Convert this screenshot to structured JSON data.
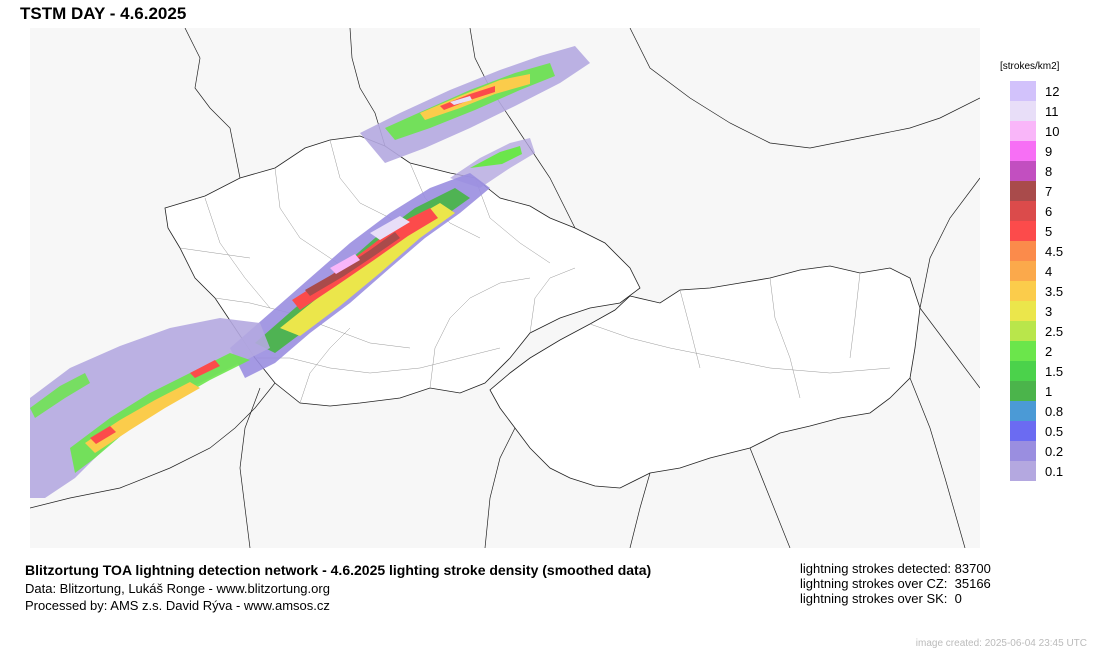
{
  "title": "TSTM DAY - 4.6.2025",
  "legend": {
    "unit": "[strokes/km2]",
    "items": [
      {
        "label": "12",
        "color": "#d2c2fb"
      },
      {
        "label": "11",
        "color": "#e8def8"
      },
      {
        "label": "10",
        "color": "#f9b6f9"
      },
      {
        "label": "9",
        "color": "#f76ff5"
      },
      {
        "label": "8",
        "color": "#c24fc0"
      },
      {
        "label": "7",
        "color": "#a94b4b"
      },
      {
        "label": "6",
        "color": "#db4b4b"
      },
      {
        "label": "5",
        "color": "#fc4b4b"
      },
      {
        "label": "4.5",
        "color": "#fb8b4b"
      },
      {
        "label": "4",
        "color": "#fba94b"
      },
      {
        "label": "3.5",
        "color": "#fbcc4b"
      },
      {
        "label": "3",
        "color": "#ebe64b"
      },
      {
        "label": "2.5",
        "color": "#b9e64b"
      },
      {
        "label": "2",
        "color": "#6be64b"
      },
      {
        "label": "1.5",
        "color": "#4bd24b"
      },
      {
        "label": "1",
        "color": "#4bb44b"
      },
      {
        "label": "0.8",
        "color": "#4b9ad6"
      },
      {
        "label": "0.5",
        "color": "#6b6bf2"
      },
      {
        "label": "0.2",
        "color": "#9a8ee0"
      },
      {
        "label": "0.1",
        "color": "#b4a8e0"
      }
    ]
  },
  "footer": {
    "title": "Blitzortung TOA lightning detection network - 4.6.2025  lighting stroke density (smoothed data)",
    "data_line": "Data: Blitzortung, Lukáš Ronge - www.blitzortung.org",
    "processed_line": "Processed by: AMS z.s. David Rýva - www.amsos.cz"
  },
  "stats": [
    {
      "label": "lightning strokes detected:",
      "value": "83700"
    },
    {
      "label": "lightning strokes over CZ:",
      "value": "35166"
    },
    {
      "label": "lightning strokes over SK:",
      "value": "0"
    }
  ],
  "created": "image created: 2025-06-04 23:45 UTC"
}
